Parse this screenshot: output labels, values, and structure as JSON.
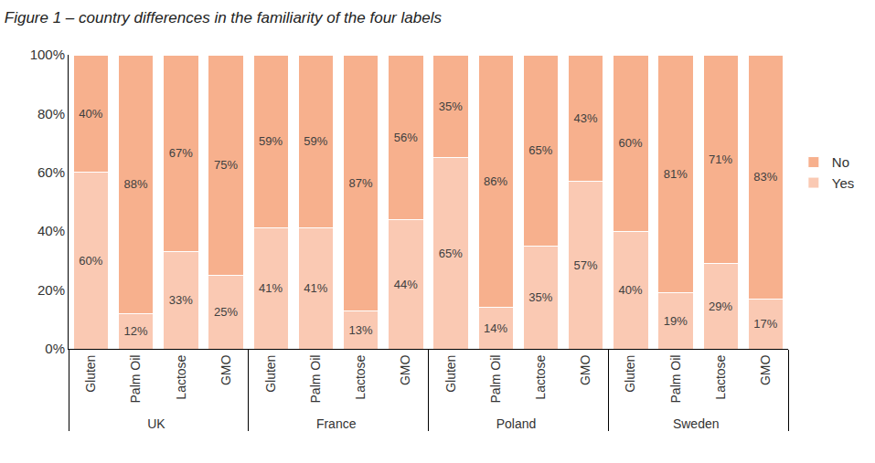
{
  "chart_data": {
    "type": "bar",
    "title": "Figure 1 – country differences in the familiarity of the four labels",
    "groups": [
      "UK",
      "UK",
      "UK",
      "UK",
      "France",
      "France",
      "France",
      "France",
      "Poland",
      "Poland",
      "Poland",
      "Poland",
      "Sweden",
      "Sweden",
      "Sweden",
      "Sweden"
    ],
    "categories": [
      "Gluten",
      "Palm Oil",
      "Lactose",
      "GMO",
      "Gluten",
      "Palm Oil",
      "Lactose",
      "GMO",
      "Gluten",
      "Palm Oil",
      "Lactose",
      "GMO",
      "Gluten",
      "Palm Oil",
      "Lactose",
      "GMO"
    ],
    "series": [
      {
        "name": "Yes",
        "color": "#FAC9B3",
        "values": [
          60,
          12,
          33,
          25,
          41,
          41,
          13,
          44,
          65,
          14,
          35,
          57,
          40,
          19,
          29,
          17
        ],
        "value_labels": [
          "60%",
          "12%",
          "33%",
          "25%",
          "41%",
          "41%",
          "13%",
          "44%",
          "65%",
          "14%",
          "35%",
          "57%",
          "40%",
          "19%",
          "29%",
          "17%"
        ]
      },
      {
        "name": "No",
        "color": "#F7B08D",
        "values": [
          40,
          88,
          67,
          75,
          59,
          59,
          87,
          56,
          35,
          86,
          65,
          43,
          60,
          81,
          71,
          83
        ],
        "value_labels": [
          "40%",
          "88%",
          "67%",
          "75%",
          "59%",
          "59%",
          "87%",
          "56%",
          "35%",
          "86%",
          "65%",
          "43%",
          "60%",
          "81%",
          "71%",
          "83%"
        ]
      }
    ],
    "ylim": [
      0,
      100
    ],
    "yticks": [
      {
        "value": 0,
        "label": "0%"
      },
      {
        "value": 20,
        "label": "20%"
      },
      {
        "value": 40,
        "label": "40%"
      },
      {
        "value": 60,
        "label": "60%"
      },
      {
        "value": 80,
        "label": "80%"
      },
      {
        "value": 100,
        "label": "100%"
      }
    ],
    "stacked": true,
    "data_labels": true,
    "grid": false,
    "legend": "right"
  }
}
